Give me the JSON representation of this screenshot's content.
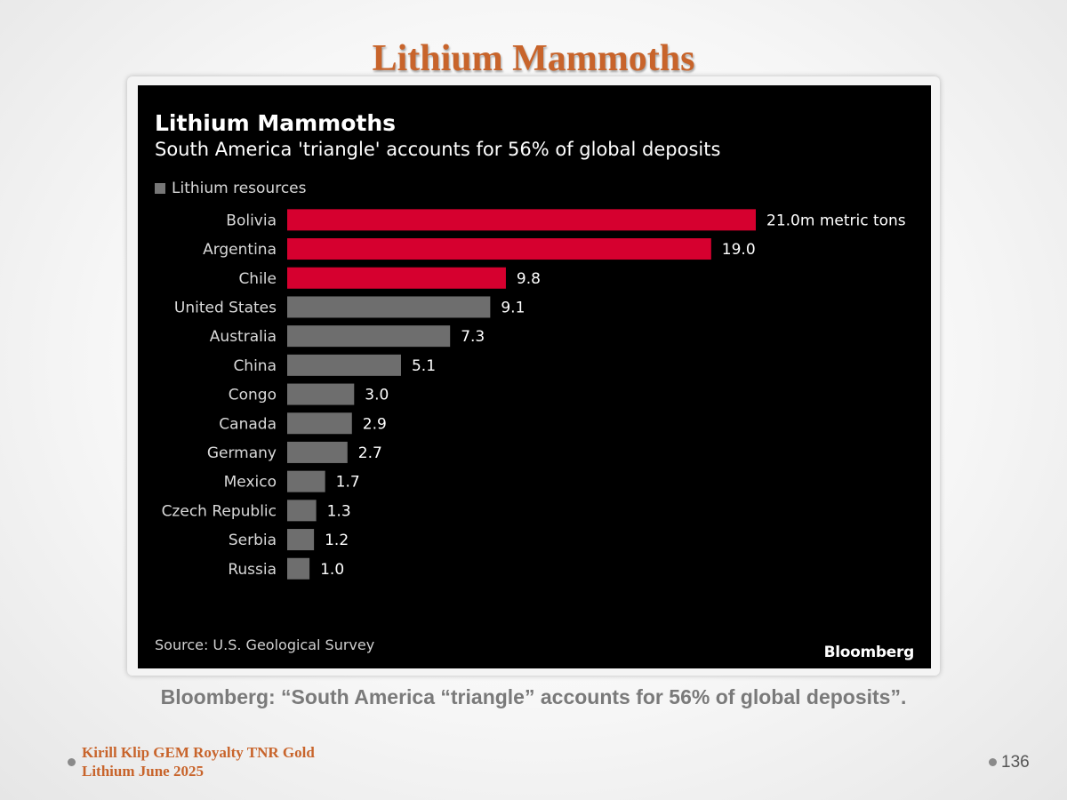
{
  "slide": {
    "title": "Lithium Mammoths",
    "caption": "Bloomberg: “South America “triangle” accounts for 56% of global deposits”.",
    "footer_line1": "Kirill Klip GEM Royalty TNR Gold",
    "footer_line2": "Lithium June 2025",
    "page_number": "136"
  },
  "chart_data": {
    "type": "bar",
    "orientation": "horizontal",
    "title": "Lithium Mammoths",
    "subtitle": "South America 'triangle' accounts for 56% of global deposits",
    "legend": "Lithium resources",
    "source": "Source: U.S. Geological Survey",
    "brand": "Bloomberg",
    "categories": [
      "Bolivia",
      "Argentina",
      "Chile",
      "United States",
      "Australia",
      "China",
      "Congo",
      "Canada",
      "Germany",
      "Mexico",
      "Czech Republic",
      "Serbia",
      "Russia"
    ],
    "values": [
      21.0,
      19.0,
      9.8,
      9.1,
      7.3,
      5.1,
      3.0,
      2.9,
      2.7,
      1.7,
      1.3,
      1.2,
      1.0
    ],
    "value_labels": [
      "21.0m metric tons",
      "19.0",
      "9.8",
      "9.1",
      "7.3",
      "5.1",
      "3.0",
      "2.9",
      "2.7",
      "1.7",
      "1.3",
      "1.2",
      "1.0"
    ],
    "highlight_indices": [
      0,
      1,
      2
    ],
    "highlight_color": "#d6002f",
    "bar_color": "#6e6e6e",
    "background_color": "#000000",
    "xlim": [
      0,
      21
    ]
  }
}
